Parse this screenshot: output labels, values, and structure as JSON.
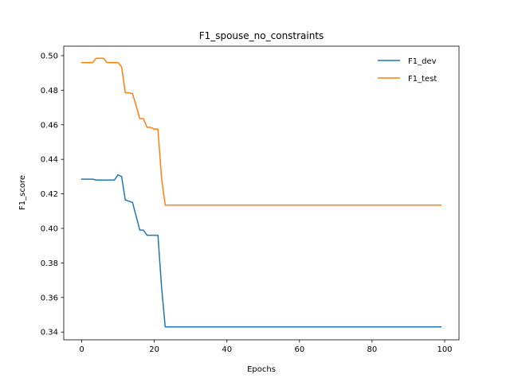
{
  "chart_data": {
    "type": "line",
    "title": "F1_spouse_no_constraints",
    "xlabel": "Epochs",
    "ylabel": "F1_score",
    "xlim": [
      -4.95,
      103.95
    ],
    "ylim": [
      0.3355,
      0.5055
    ],
    "xticks": [
      0,
      20,
      40,
      60,
      80,
      100
    ],
    "yticks": [
      0.34,
      0.36,
      0.38,
      0.4,
      0.42,
      0.44,
      0.46,
      0.48,
      0.5
    ],
    "ytick_labels": [
      "0.34",
      "0.36",
      "0.38",
      "0.40",
      "0.42",
      "0.44",
      "0.46",
      "0.48",
      "0.50"
    ],
    "grid": false,
    "legend_position": "upper right",
    "series": [
      {
        "name": "F1_dev",
        "color": "#1f77b4",
        "points": [
          [
            0,
            0.4285
          ],
          [
            3,
            0.4285
          ],
          [
            4,
            0.428
          ],
          [
            9,
            0.428
          ],
          [
            10,
            0.431
          ],
          [
            11,
            0.43
          ],
          [
            12,
            0.4165
          ],
          [
            14,
            0.415
          ],
          [
            16,
            0.399
          ],
          [
            17,
            0.399
          ],
          [
            18,
            0.396
          ],
          [
            21,
            0.396
          ],
          [
            22,
            0.366
          ],
          [
            23,
            0.343
          ],
          [
            99,
            0.343
          ]
        ]
      },
      {
        "name": "F1_test",
        "color": "#ff7f0e",
        "points": [
          [
            0,
            0.496
          ],
          [
            3,
            0.496
          ],
          [
            4,
            0.4985
          ],
          [
            6,
            0.4985
          ],
          [
            7,
            0.496
          ],
          [
            10,
            0.496
          ],
          [
            11,
            0.4935
          ],
          [
            12,
            0.4785
          ],
          [
            13,
            0.4785
          ],
          [
            14,
            0.478
          ],
          [
            15,
            0.471
          ],
          [
            16,
            0.4635
          ],
          [
            17,
            0.4635
          ],
          [
            18,
            0.4585
          ],
          [
            19,
            0.4585
          ],
          [
            20,
            0.4575
          ],
          [
            21,
            0.4575
          ],
          [
            22,
            0.429
          ],
          [
            23,
            0.4135
          ],
          [
            99,
            0.4135
          ]
        ]
      }
    ]
  }
}
